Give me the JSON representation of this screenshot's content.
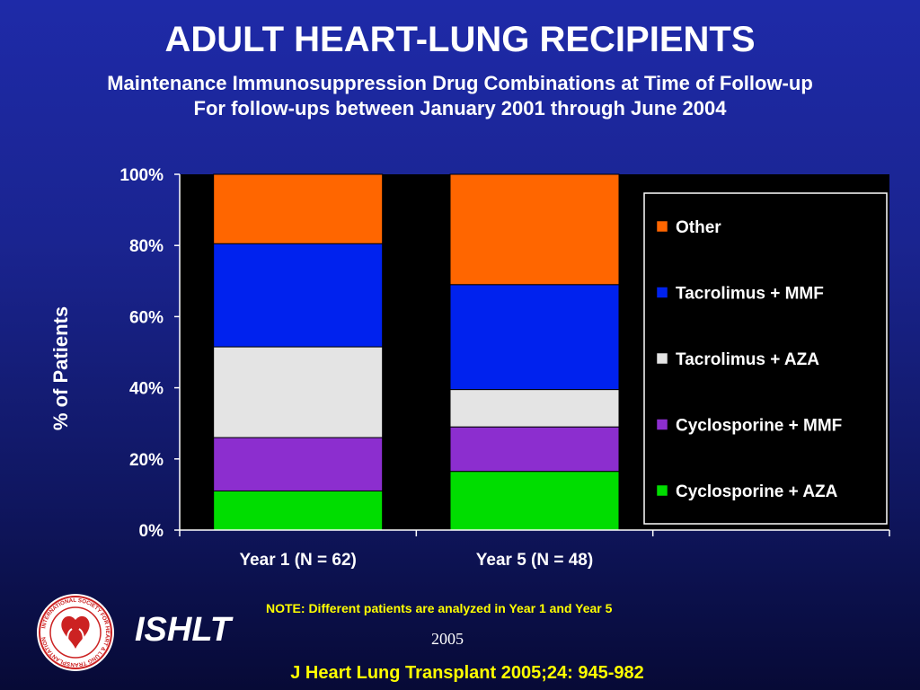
{
  "header": {
    "title": "ADULT HEART-LUNG RECIPIENTS",
    "subtitle_line1": "Maintenance Immunosuppression Drug Combinations at Time of Follow-up",
    "subtitle_line2": "For follow-ups between January 2001 through June 2004"
  },
  "chart_data": {
    "type": "bar",
    "stacked": true,
    "percent": true,
    "ylabel": "% of Patients",
    "ylim": [
      0,
      100
    ],
    "yticks": [
      "0%",
      "20%",
      "40%",
      "60%",
      "80%",
      "100%"
    ],
    "categories": [
      "Year 1 (N = 62)",
      "Year 5 (N = 48)"
    ],
    "series": [
      {
        "name": "Cyclosporine + AZA",
        "values": [
          11,
          16.5
        ],
        "color": "#00dd00"
      },
      {
        "name": "Cyclosporine + MMF",
        "values": [
          15,
          12.5
        ],
        "color": "#8c2ecf"
      },
      {
        "name": "Tacrolimus + AZA",
        "values": [
          25.5,
          10.5
        ],
        "color": "#e4e4e4"
      },
      {
        "name": "Tacrolimus + MMF",
        "values": [
          29,
          29.5
        ],
        "color": "#0022ee"
      },
      {
        "name": "Other",
        "values": [
          19.5,
          31
        ],
        "color": "#ff6600"
      }
    ],
    "legend_position": "right",
    "plot_background": "#000000"
  },
  "footer": {
    "note": "NOTE: Different patients are analyzed in Year 1 and Year 5",
    "year": "2005",
    "org": "ISHLT",
    "citation": "J Heart Lung Transplant 2005;24: 945-982",
    "logo_text": "INTERNATIONAL SOCIETY FOR HEART & LUNG TRANSPLANTATION"
  }
}
